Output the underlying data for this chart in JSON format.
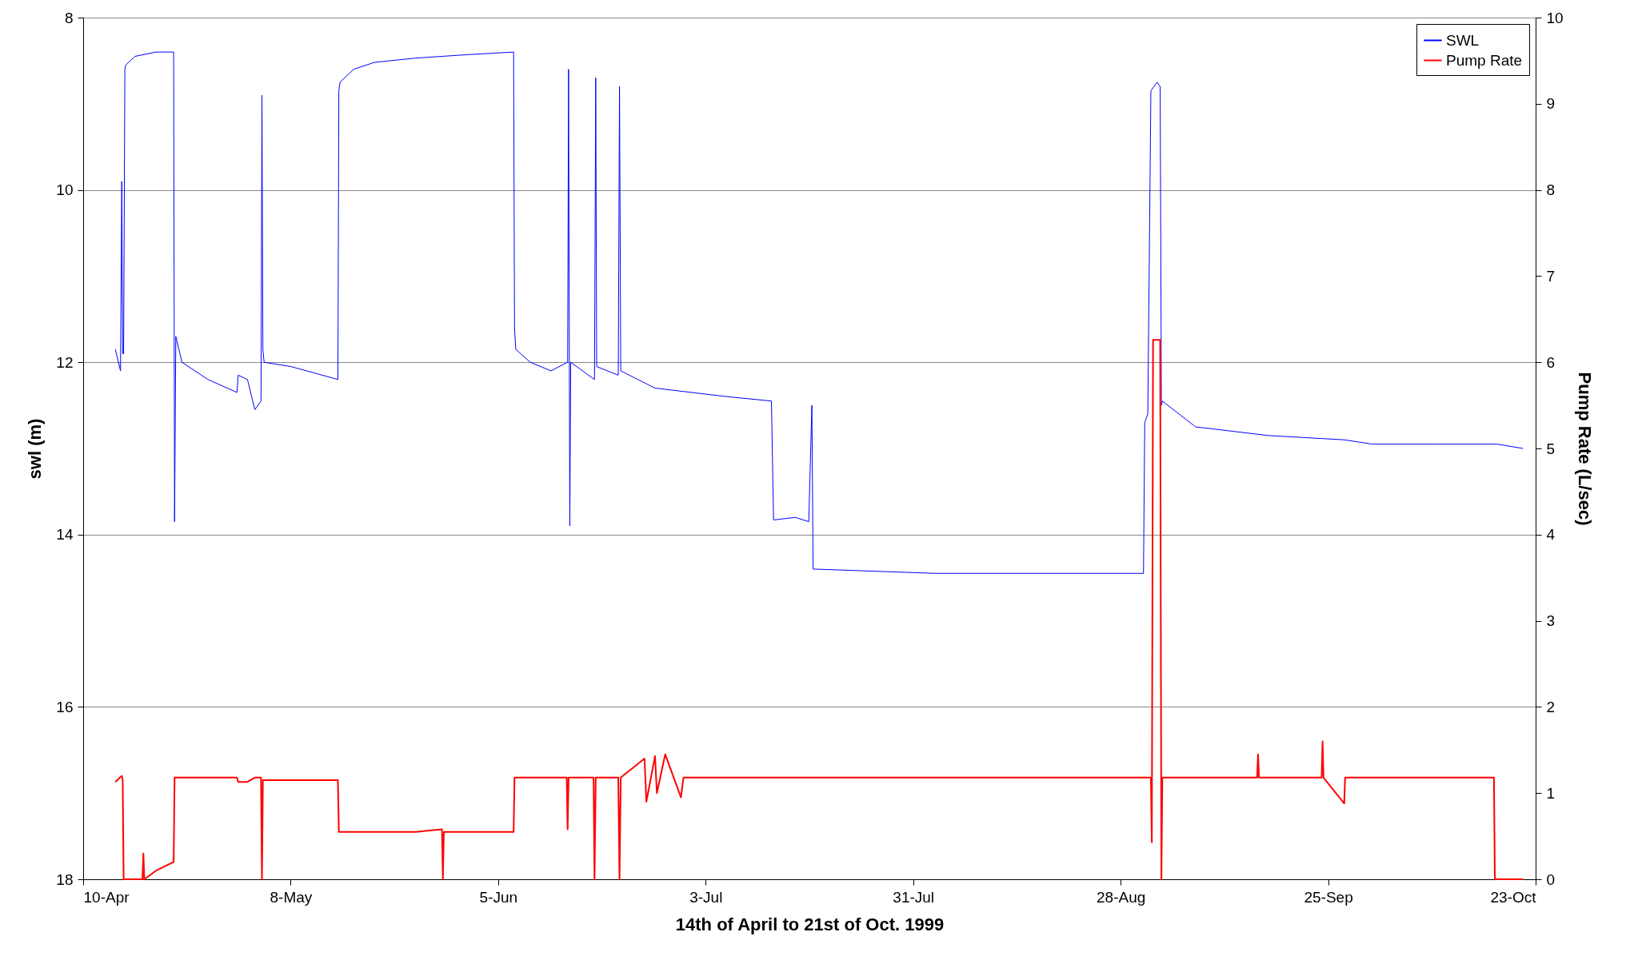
{
  "chart_data": {
    "type": "line",
    "xlabel": "14th of April to 21st of Oct. 1999",
    "ylabel": "swl (m)",
    "y2label": "Pump Rate (L/sec)",
    "xlim": [
      "1999-04-10",
      "1999-10-23"
    ],
    "xticks": [
      {
        "value": "1999-04-10",
        "label": "10-Apr"
      },
      {
        "value": "1999-05-08",
        "label": "8-May"
      },
      {
        "value": "1999-06-05",
        "label": "5-Jun"
      },
      {
        "value": "1999-07-03",
        "label": "3-Jul"
      },
      {
        "value": "1999-07-31",
        "label": "31-Jul"
      },
      {
        "value": "1999-08-28",
        "label": "28-Aug"
      },
      {
        "value": "1999-09-25",
        "label": "25-Sep"
      },
      {
        "value": "1999-10-23",
        "label": "23-Oct"
      }
    ],
    "ylim": [
      18,
      8
    ],
    "yticks": [
      8,
      10,
      12,
      14,
      16,
      18
    ],
    "y2lim": [
      0,
      10
    ],
    "y2ticks": [
      0,
      1,
      2,
      3,
      4,
      5,
      6,
      7,
      8,
      9,
      10
    ],
    "grid": "y",
    "legend": "top right",
    "marker": "none",
    "line_style": "solid",
    "series": [
      {
        "name": "SWL",
        "color": "#0000ff",
        "axis": "y",
        "x": [
          "1999-04-14T08:00",
          "1999-04-15T01:00",
          "1999-04-15T05:00",
          "1999-04-15T08:00",
          "1999-04-15T11:00",
          "1999-04-15T15:00",
          "1999-04-15T18:00",
          "1999-04-17T00:00",
          "1999-04-19T20:00",
          "1999-04-22T05:00",
          "1999-04-22T08:00",
          "1999-04-22T12:00",
          "1999-04-23T08:00",
          "1999-04-26T20:00",
          "1999-04-30T18:00",
          "1999-04-30T22:00",
          "1999-05-02T04:00",
          "1999-05-03T04:00",
          "1999-05-04T00:00",
          "1999-05-04T03:00",
          "1999-05-04T06:00",
          "1999-05-04T10:00",
          "1999-05-08T01:00",
          "1999-05-14T09:00",
          "1999-05-14T12:00",
          "1999-05-14T16:00",
          "1999-05-16T12:00",
          "1999-05-19T07:00",
          "1999-05-24T21:00",
          "1999-05-31T22:00",
          "1999-06-07T02:00",
          "1999-06-07T05:00",
          "1999-06-07T09:00",
          "1999-06-09T08:00",
          "1999-06-12T03:00",
          "1999-06-14T09:00",
          "1999-06-14T12:00",
          "1999-06-14T16:00",
          "1999-06-14T19:00",
          "1999-06-18T00:00",
          "1999-06-18T04:00",
          "1999-06-18T07:00",
          "1999-06-21T05:00",
          "1999-06-21T09:00",
          "1999-06-21T13:00",
          "1999-06-26T04:00",
          "1999-07-06T00:00",
          "1999-07-11T21:00",
          "1999-07-12T04:00",
          "1999-07-15T02:00",
          "1999-07-16T22:00",
          "1999-07-17T08:00",
          "1999-07-17T12:00",
          "1999-08-03T01:00",
          "1999-08-17T02:00",
          "1999-08-31T02:00",
          "1999-08-31T06:00",
          "1999-08-31T16:00",
          "1999-09-01T02:00",
          "1999-09-01T22:00",
          "1999-09-02T08:00",
          "1999-09-02T12:00",
          "1999-09-02T15:00",
          "1999-09-07T03:00",
          "1999-09-16T22:00",
          "1999-09-27T04:00",
          "1999-09-30T23:00",
          "1999-10-09T09:00",
          "1999-10-17T19:00",
          "1999-10-21T07:00"
        ],
        "values": [
          11.85,
          12.1,
          9.9,
          11.9,
          11.9,
          8.6,
          8.55,
          8.45,
          8.4,
          8.4,
          13.85,
          11.7,
          12.0,
          12.2,
          12.35,
          12.15,
          12.2,
          12.55,
          12.45,
          8.9,
          11.85,
          12.0,
          12.05,
          12.2,
          8.85,
          8.75,
          8.6,
          8.52,
          8.47,
          8.43,
          8.4,
          11.6,
          11.85,
          12.0,
          12.1,
          12.0,
          8.6,
          13.9,
          12.0,
          12.2,
          8.7,
          12.05,
          12.15,
          8.8,
          12.1,
          12.3,
          12.4,
          12.45,
          13.83,
          13.8,
          13.85,
          12.5,
          14.4,
          14.45,
          14.45,
          14.45,
          12.7,
          12.6,
          8.85,
          8.75,
          8.8,
          12.5,
          12.45,
          12.75,
          12.85,
          12.9,
          12.95,
          12.95,
          12.95,
          13.0
        ]
      },
      {
        "name": "Pump Rate",
        "color": "#ff0000",
        "axis": "y2",
        "x": [
          "1999-04-14T08:00",
          "1999-04-15T05:00",
          "1999-04-15T08:00",
          "1999-04-15T11:00",
          "1999-04-18T00:00",
          "1999-04-18T03:00",
          "1999-04-18T06:00",
          "1999-04-19T20:00",
          "1999-04-22T05:00",
          "1999-04-22T08:00",
          "1999-04-30T18:00",
          "1999-04-30T22:00",
          "1999-05-02T04:00",
          "1999-05-03T04:00",
          "1999-05-04T00:00",
          "1999-05-04T03:00",
          "1999-05-04T06:00",
          "1999-05-14T09:00",
          "1999-05-14T12:00",
          "1999-05-24T21:00",
          "1999-05-28T10:00",
          "1999-05-28T13:00",
          "1999-05-28T16:00",
          "1999-06-07T02:00",
          "1999-06-07T05:00",
          "1999-06-14T06:00",
          "1999-06-14T09:00",
          "1999-06-14T12:00",
          "1999-06-17T21:00",
          "1999-06-18T00:00",
          "1999-06-18T04:00",
          "1999-06-21T05:00",
          "1999-06-21T09:00",
          "1999-06-21T13:00",
          "1999-06-24T18:00",
          "1999-06-25T00:00",
          "1999-06-26T04:00",
          "1999-06-26T10:00",
          "1999-06-27T13:00",
          "1999-06-29T16:00",
          "1999-06-30T00:00",
          "1999-08-31T02:00",
          "1999-09-01T02:00",
          "1999-09-01T05:00",
          "1999-09-01T09:00",
          "1999-09-02T08:00",
          "1999-09-02T12:00",
          "1999-09-02T15:00",
          "1999-09-15T10:00",
          "1999-09-15T13:00",
          "1999-09-15T16:00",
          "1999-09-24T03:00",
          "1999-09-24T06:00",
          "1999-09-24T09:00",
          "1999-09-27T04:00",
          "1999-09-27T07:00",
          "1999-10-17T09:00",
          "1999-10-17T12:00",
          "1999-10-21T07:00"
        ],
        "values": [
          1.13,
          1.2,
          1.15,
          0,
          0,
          0.3,
          0,
          0.1,
          0.2,
          1.18,
          1.18,
          1.13,
          1.13,
          1.18,
          1.18,
          0,
          1.15,
          1.15,
          0.55,
          0.55,
          0.58,
          0,
          0.55,
          0.55,
          1.18,
          1.18,
          0.58,
          1.18,
          1.18,
          0,
          1.18,
          1.18,
          0,
          1.18,
          1.4,
          0.9,
          1.43,
          1.0,
          1.45,
          0.95,
          1.18,
          1.18,
          1.18,
          0.43,
          6.26,
          6.26,
          0,
          1.18,
          1.18,
          1.45,
          1.18,
          1.18,
          1.6,
          1.18,
          0.88,
          1.18,
          1.18,
          0,
          0
        ]
      }
    ]
  }
}
